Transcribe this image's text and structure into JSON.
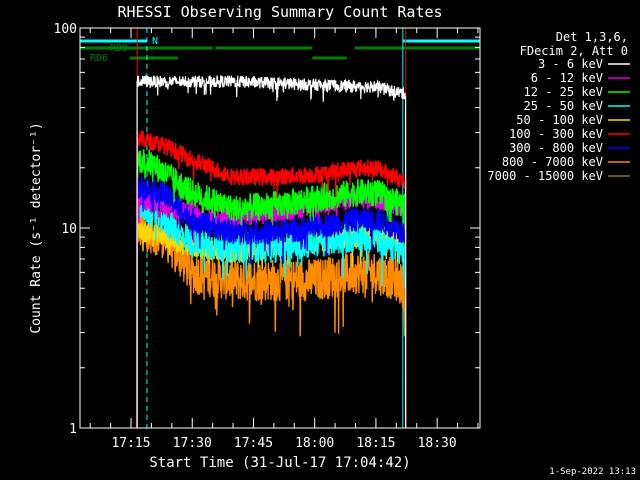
{
  "chart_data": {
    "type": "line",
    "title": "RHESSI Observing Summary Count Rates",
    "xlabel": "Start Time (31-Jul-17 17:04:42)",
    "ylabel": "Count Rate (s⁻¹ detector⁻¹)",
    "y_scale": "log",
    "ylim": [
      1,
      100
    ],
    "y_ticks": [
      1,
      10,
      100
    ],
    "y_tick_labels": [
      "1",
      "10",
      "100"
    ],
    "x_range_minutes": [
      1022.5,
      1120.5
    ],
    "x_ticks": [
      {
        "minutes": 1035,
        "label": "17:15"
      },
      {
        "minutes": 1050,
        "label": "17:30"
      },
      {
        "minutes": 1065,
        "label": "17:45"
      },
      {
        "minutes": 1080,
        "label": "18:00"
      },
      {
        "minutes": 1095,
        "label": "18:15"
      },
      {
        "minutes": 1110,
        "label": "18:30"
      }
    ],
    "legend_header": [
      "Det 1,3,6,",
      "FDecim 2, Att 0"
    ],
    "legend_placement": "right",
    "data_start_minute": 1036.5,
    "data_end_minute": 1102.3,
    "series": [
      {
        "name": "3 - 6 keV",
        "color": "#ffffff",
        "x": [
          1037,
          1040,
          1043,
          1050,
          1060,
          1070,
          1080,
          1090,
          1095,
          1100,
          1102
        ],
        "y": [
          54,
          54,
          54,
          54,
          54,
          53,
          52,
          51,
          51,
          48,
          47
        ]
      },
      {
        "name": "6 - 12 keV",
        "color": "#e000e0",
        "x": [
          1037,
          1040,
          1043,
          1050,
          1060,
          1070,
          1080,
          1090,
          1095,
          1100,
          1102
        ],
        "y": [
          14,
          13.5,
          13,
          12,
          11,
          12,
          13,
          14,
          14,
          13,
          12.5
        ]
      },
      {
        "name": "12 - 25 keV",
        "color": "#00ff00",
        "x": [
          1037,
          1040,
          1043,
          1050,
          1060,
          1070,
          1080,
          1090,
          1095,
          1100,
          1102
        ],
        "y": [
          22,
          21,
          19,
          15,
          12.5,
          13,
          14,
          15,
          15,
          13.5,
          13
        ]
      },
      {
        "name": "25 - 50 keV",
        "color": "#00ffff",
        "x": [
          1037,
          1040,
          1043,
          1050,
          1060,
          1070,
          1080,
          1090,
          1095,
          1100,
          1102
        ],
        "y": [
          13,
          12,
          11,
          8.5,
          8,
          8,
          8.5,
          9,
          9,
          8,
          7.5
        ]
      },
      {
        "name": "50 - 100 keV",
        "color": "#ffd700",
        "x": [
          1037,
          1040,
          1043,
          1050,
          1060,
          1070,
          1080,
          1090,
          1095,
          1100,
          1102
        ],
        "y": [
          9.5,
          9.5,
          9,
          8,
          7.5,
          8,
          8.5,
          9,
          9,
          8.5,
          8
        ]
      },
      {
        "name": "100 - 300 keV",
        "color": "#ff0000",
        "x": [
          1037,
          1040,
          1043,
          1050,
          1060,
          1070,
          1080,
          1090,
          1095,
          1100,
          1102
        ],
        "y": [
          28,
          27,
          26,
          22,
          18,
          18,
          18.5,
          20,
          20,
          18,
          17
        ]
      },
      {
        "name": "300 - 800 keV",
        "color": "#0000ff",
        "x": [
          1037,
          1040,
          1043,
          1050,
          1060,
          1070,
          1080,
          1090,
          1095,
          1100,
          1102
        ],
        "y": [
          16,
          15.5,
          15,
          11,
          9.5,
          9.5,
          10,
          11,
          11,
          10,
          9.5
        ]
      },
      {
        "name": "800 - 7000 keV",
        "color": "#ff8c00",
        "x": [
          1037,
          1040,
          1043,
          1050,
          1060,
          1070,
          1080,
          1090,
          1095,
          1100,
          1102
        ],
        "y": [
          10,
          9.5,
          9,
          6,
          5.5,
          5.5,
          5.5,
          6,
          6,
          5.5,
          5
        ]
      },
      {
        "name": "7000 - 15000 keV",
        "color": "#808000",
        "x": [],
        "y": []
      }
    ],
    "flags": [
      {
        "label": "N",
        "color": "#00ffff",
        "intervals": [
          [
            1022.5,
            1038.9
          ],
          [
            1101.6,
            1120.5
          ]
        ]
      },
      {
        "label": "RD0",
        "color": "#008000",
        "intervals": [
          [
            1022.5,
            1055.0
          ],
          [
            1055.7,
            1079.3
          ],
          [
            1089.8,
            1120.5
          ]
        ]
      },
      {
        "label": "RD6",
        "color": "#008000",
        "intervals": [
          [
            1034.7,
            1046.5
          ],
          [
            1079.4,
            1087.9
          ]
        ]
      }
    ],
    "solid_vlines": [
      {
        "color": "#00ffff",
        "minute": 1022.5
      },
      {
        "color": "#00ffff",
        "minute": 1101.6
      },
      {
        "color": "#ff0000",
        "minute": 1036.5
      },
      {
        "color": "#ff0000",
        "minute": 1102.3
      }
    ],
    "dashed_vlines": [
      {
        "color": "#00ffff",
        "minute": 1038.9
      },
      {
        "color": "#00ffff",
        "minute": 1120.5
      }
    ]
  },
  "footer": {
    "timestamp": "1-Sep-2022 13:13"
  }
}
